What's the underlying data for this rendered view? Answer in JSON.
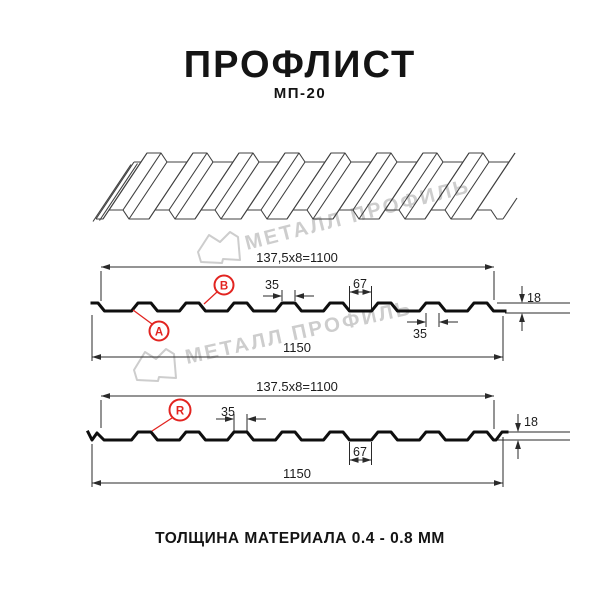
{
  "title": "ПРОФЛИСТ",
  "subtitle": "МП-20",
  "footer": "ТОЛЩИНА МАТЕРИАЛА 0.4 - 0.8 ММ",
  "watermark": {
    "brand": "МЕТАЛЛ ПРОФИЛЬ"
  },
  "colors": {
    "accent_red": "#e22420",
    "line_dark": "#141414",
    "dimension_gray": "#2a2a2a",
    "watermark_gray": "#cdcdcd"
  },
  "top_section": {
    "pitch_formula": "137,5x8=1100",
    "rib_top_width": "35",
    "trough_width": "67",
    "profile_height": "18",
    "rib_bottom_width": "35",
    "overall_width": "1150",
    "label_a": "A",
    "label_b": "B"
  },
  "bottom_section": {
    "pitch_formula": "137.5x8=1100",
    "rib_top_width": "35",
    "trough_width": "67",
    "profile_height": "18",
    "overall_width": "1150",
    "label_r": "R"
  }
}
